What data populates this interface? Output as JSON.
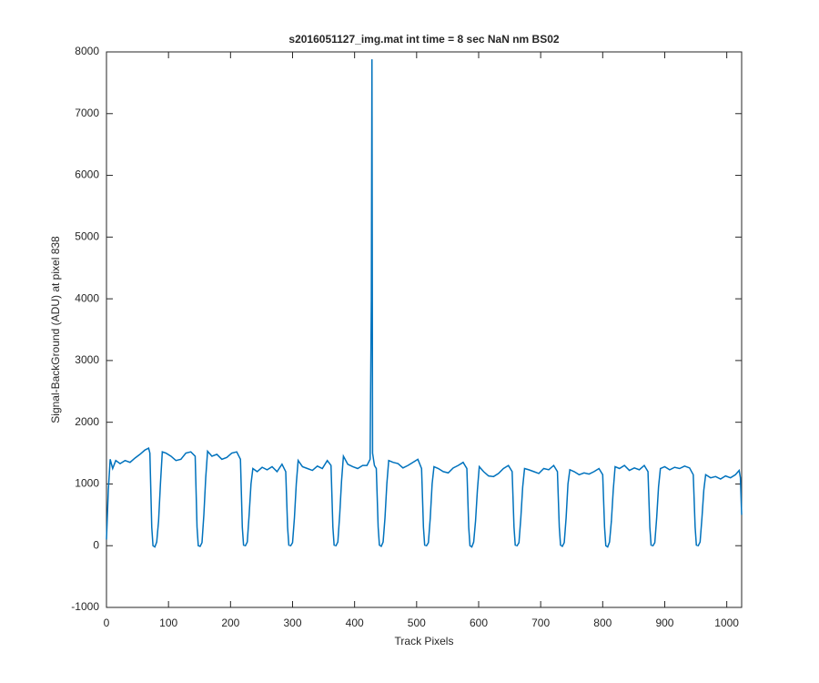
{
  "chart_data": {
    "type": "line",
    "title": "s2016051127_img.mat int time = 8 sec  NaN nm BS02",
    "xlabel": "Track Pixels",
    "ylabel": "Signal-BackGround (ADU) at pixel 838",
    "color": "#0072bd",
    "xlim": [
      0,
      1024
    ],
    "xticks": [
      0,
      100,
      200,
      300,
      400,
      500,
      600,
      700,
      800,
      900,
      1000
    ],
    "ylim": [
      -1000,
      8000
    ],
    "yticks": [
      -1000,
      0,
      1000,
      2000,
      3000,
      4000,
      5000,
      6000,
      7000,
      8000
    ],
    "x": [
      0,
      3,
      6,
      10,
      15,
      22,
      30,
      38,
      46,
      54,
      62,
      68,
      70,
      73,
      75,
      78,
      81,
      84,
      87,
      90,
      96,
      104,
      112,
      120,
      128,
      136,
      143,
      146,
      148,
      151,
      154,
      157,
      160,
      163,
      170,
      178,
      186,
      194,
      202,
      210,
      216,
      219,
      221,
      224,
      227,
      230,
      233,
      236,
      243,
      251,
      259,
      267,
      275,
      283,
      289,
      292,
      294,
      297,
      300,
      303,
      306,
      309,
      316,
      324,
      332,
      340,
      348,
      356,
      362,
      365,
      367,
      370,
      373,
      376,
      379,
      382,
      389,
      397,
      405,
      413,
      420,
      425,
      427,
      428,
      429,
      432,
      435,
      438,
      440,
      443,
      446,
      449,
      452,
      455,
      462,
      470,
      478,
      486,
      494,
      502,
      508,
      511,
      513,
      516,
      519,
      522,
      525,
      528,
      535,
      543,
      551,
      559,
      567,
      575,
      581,
      584,
      586,
      589,
      592,
      595,
      598,
      601,
      608,
      616,
      624,
      632,
      640,
      648,
      654,
      657,
      659,
      662,
      665,
      668,
      671,
      674,
      681,
      689,
      697,
      705,
      713,
      721,
      727,
      730,
      732,
      735,
      738,
      741,
      744,
      747,
      754,
      762,
      770,
      778,
      786,
      794,
      800,
      803,
      805,
      808,
      811,
      814,
      817,
      820,
      827,
      835,
      843,
      851,
      859,
      867,
      873,
      876,
      878,
      881,
      884,
      887,
      890,
      893,
      900,
      908,
      916,
      924,
      932,
      940,
      946,
      949,
      951,
      954,
      957,
      960,
      963,
      966,
      974,
      982,
      990,
      998,
      1006,
      1014,
      1020,
      1022,
      1024
    ],
    "values": [
      100,
      900,
      1400,
      1250,
      1380,
      1330,
      1380,
      1350,
      1420,
      1480,
      1550,
      1580,
      1500,
      300,
      0,
      -20,
      60,
      400,
      1000,
      1520,
      1500,
      1450,
      1380,
      1400,
      1500,
      1520,
      1450,
      300,
      0,
      -10,
      50,
      500,
      1100,
      1530,
      1450,
      1480,
      1400,
      1430,
      1500,
      1520,
      1400,
      300,
      10,
      0,
      60,
      500,
      1000,
      1250,
      1200,
      1270,
      1230,
      1280,
      1200,
      1320,
      1200,
      300,
      10,
      0,
      50,
      450,
      1000,
      1380,
      1280,
      1250,
      1220,
      1290,
      1250,
      1380,
      1300,
      300,
      10,
      0,
      60,
      500,
      1050,
      1450,
      1320,
      1280,
      1250,
      1300,
      1300,
      1400,
      4000,
      7880,
      1500,
      1300,
      1250,
      300,
      10,
      -10,
      60,
      450,
      1000,
      1380,
      1350,
      1330,
      1260,
      1300,
      1350,
      1400,
      1250,
      300,
      10,
      0,
      50,
      450,
      1000,
      1280,
      1250,
      1200,
      1180,
      1260,
      1300,
      1350,
      1250,
      300,
      0,
      -20,
      60,
      400,
      900,
      1280,
      1200,
      1130,
      1120,
      1170,
      1250,
      1300,
      1200,
      300,
      10,
      0,
      50,
      450,
      950,
      1250,
      1230,
      1200,
      1170,
      1250,
      1230,
      1300,
      1200,
      300,
      10,
      -10,
      50,
      450,
      1000,
      1230,
      1200,
      1150,
      1180,
      1160,
      1200,
      1250,
      1150,
      300,
      0,
      -20,
      60,
      400,
      900,
      1280,
      1250,
      1300,
      1220,
      1260,
      1230,
      1300,
      1200,
      300,
      10,
      0,
      50,
      450,
      950,
      1250,
      1280,
      1230,
      1270,
      1250,
      1290,
      1260,
      1150,
      300,
      10,
      0,
      60,
      450,
      900,
      1150,
      1100,
      1120,
      1080,
      1130,
      1100,
      1150,
      1220,
      1100,
      500
    ]
  }
}
